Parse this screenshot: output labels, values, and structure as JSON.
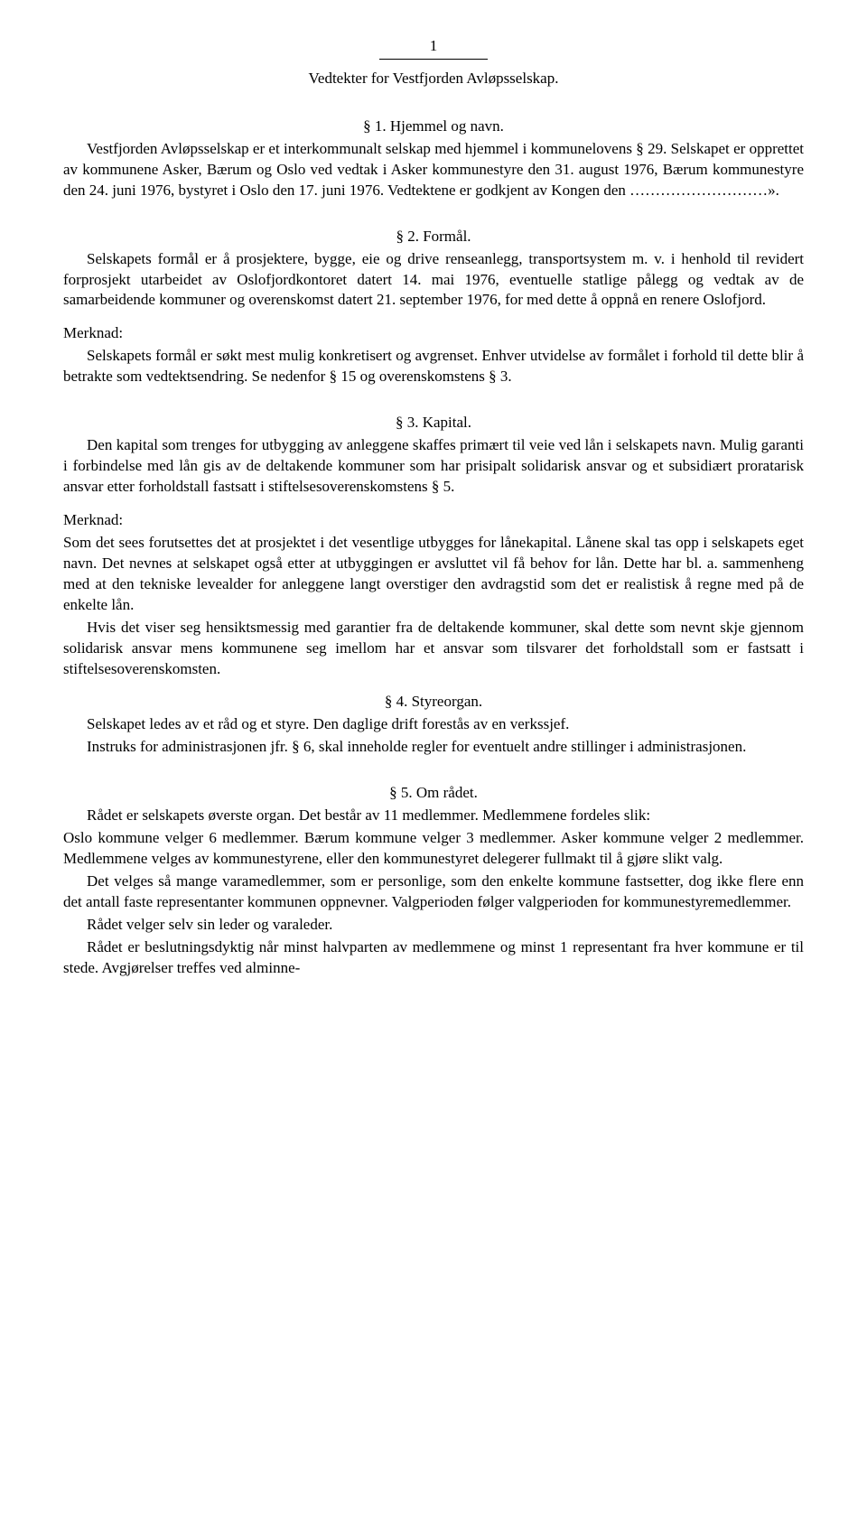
{
  "page_number": "1",
  "doc_title": "Vedtekter for Vestfjorden Avløpsselskap.",
  "sections": {
    "s1": {
      "heading": "§ 1. Hjemmel og navn.",
      "p1": "Vestfjorden Avløpsselskap er et interkommunalt selskap med hjemmel i kommunelovens § 29. Selskapet er opprettet av kommunene Asker, Bærum og Oslo ved vedtak i Asker kommunestyre den 31. august 1976, Bærum kommunestyre den 24. juni 1976, bystyret i Oslo den 17. juni 1976. Vedtektene er godkjent av Kongen den ………………………»."
    },
    "s2": {
      "heading": "§ 2. Formål.",
      "p1": "Selskapets formål er å prosjektere, bygge, eie og drive renseanlegg, transportsystem m. v. i henhold til revidert forprosjekt utarbeidet av Oslofjordkontoret datert 14. mai 1976, eventuelle statlige pålegg og vedtak av de samarbeidende kommuner og overenskomst datert 21. september 1976, for med dette å oppnå en renere Oslofjord.",
      "merknad_label": "Merknad:",
      "merknad": "Selskapets formål er søkt mest mulig konkretisert og avgrenset. Enhver utvidelse av formålet i forhold til dette blir å betrakte som vedtektsendring. Se nedenfor § 15 og overenskomstens § 3."
    },
    "s3": {
      "heading": "§ 3. Kapital.",
      "p1": "Den kapital som trenges for utbygging av anleggene skaffes primært til veie ved lån i selskapets navn. Mulig garanti i forbindelse med lån gis av de deltakende kommuner som har prisipalt solidarisk ansvar og et subsidiært proratarisk ansvar etter forholdstall fastsatt i stiftelsesoverenskomstens § 5.",
      "merknad_label": "Merknad:",
      "merknad1": "Som det sees forutsettes det at prosjektet i det vesentlige utbygges for lånekapital. Lånene skal tas opp i selskapets eget navn. Det nevnes at selskapet også etter at utbyggingen er avsluttet vil få behov for lån. Dette har bl. a. sammenheng med at den tekniske levealder for anleggene langt overstiger den avdragstid som det er realistisk å regne med på de enkelte lån.",
      "merknad2": "Hvis det viser seg hensiktsmessig med garantier fra de deltakende kommuner, skal dette som nevnt skje gjennom solidarisk ansvar mens kommunene seg imellom har et ansvar som tilsvarer det forholdstall som er fastsatt i stiftelsesoverenskomsten."
    },
    "s4": {
      "heading": "§ 4. Styreorgan.",
      "p1": "Selskapet ledes av et råd og et styre. Den daglige drift forestås av en verkssjef.",
      "p2": "Instruks for administrasjonen jfr. § 6, skal inneholde regler for eventuelt andre stillinger i administrasjonen."
    },
    "s5": {
      "heading": "§ 5. Om rådet.",
      "p1": "Rådet er selskapets øverste organ. Det består av 11 medlemmer. Medlemmene fordeles slik:",
      "p2": "Oslo kommune velger 6 medlemmer. Bærum kommune velger 3 medlemmer. Asker kommune velger 2 medlemmer. Medlemmene velges av kommunestyrene, eller den kommunestyret delegerer fullmakt til å gjøre slikt valg.",
      "p3": "Det velges så mange varamedlemmer, som er personlige, som den enkelte kommune fastsetter, dog ikke flere enn det antall faste representanter kommunen oppnevner. Valgperioden følger valgperioden for kommunestyremedlemmer.",
      "p4": "Rådet velger selv sin leder og varaleder.",
      "p5": "Rådet er beslutningsdyktig når minst halvparten av medlemmene og minst 1 representant fra hver kommune er til stede. Avgjørelser treffes ved alminne-"
    }
  }
}
